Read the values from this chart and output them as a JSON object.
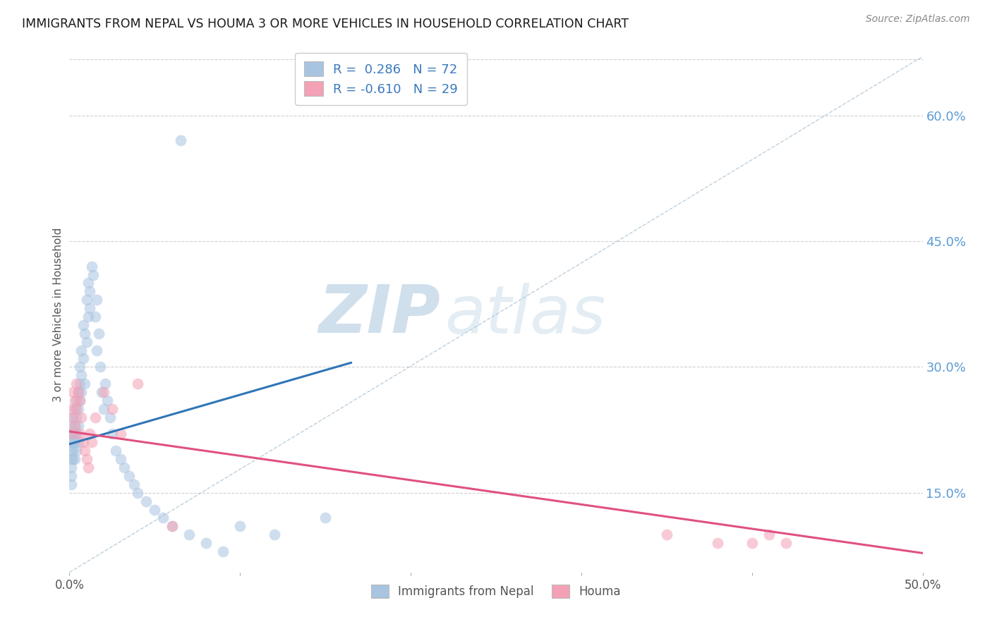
{
  "title": "IMMIGRANTS FROM NEPAL VS HOUMA 3 OR MORE VEHICLES IN HOUSEHOLD CORRELATION CHART",
  "source": "Source: ZipAtlas.com",
  "ylabel": "3 or more Vehicles in Household",
  "ytick_values": [
    0.15,
    0.3,
    0.45,
    0.6
  ],
  "xlim": [
    0.0,
    0.5
  ],
  "ylim": [
    0.055,
    0.67
  ],
  "legend_label_blue": "Immigrants from Nepal",
  "legend_label_pink": "Houma",
  "watermark_zip": "ZIP",
  "watermark_atlas": "atlas",
  "nepal_color": "#a8c4e0",
  "houma_color": "#f4a0b5",
  "nepal_line_color": "#2e75b6",
  "houma_line_color": "#e05080",
  "diag_line_color": "#b0c8d8",
  "nepal_legend_text": "R =  0.286   N = 72",
  "houma_legend_text": "R = -0.610   N = 29",
  "nepal_trend_x": [
    0.0,
    0.165
  ],
  "nepal_trend_y": [
    0.208,
    0.305
  ],
  "houma_trend_x": [
    0.0,
    0.5
  ],
  "houma_trend_y": [
    0.223,
    0.078
  ],
  "nepal_scatter_x": [
    0.001,
    0.001,
    0.001,
    0.001,
    0.001,
    0.001,
    0.001,
    0.001,
    0.002,
    0.002,
    0.002,
    0.002,
    0.002,
    0.003,
    0.003,
    0.003,
    0.003,
    0.003,
    0.004,
    0.004,
    0.004,
    0.004,
    0.005,
    0.005,
    0.005,
    0.005,
    0.006,
    0.006,
    0.006,
    0.007,
    0.007,
    0.007,
    0.008,
    0.008,
    0.009,
    0.009,
    0.01,
    0.01,
    0.011,
    0.011,
    0.012,
    0.012,
    0.013,
    0.014,
    0.015,
    0.016,
    0.016,
    0.017,
    0.018,
    0.019,
    0.02,
    0.021,
    0.022,
    0.024,
    0.025,
    0.027,
    0.03,
    0.032,
    0.035,
    0.038,
    0.04,
    0.045,
    0.05,
    0.055,
    0.06,
    0.065,
    0.07,
    0.08,
    0.09,
    0.1,
    0.12,
    0.15
  ],
  "nepal_scatter_y": [
    0.21,
    0.2,
    0.22,
    0.19,
    0.23,
    0.18,
    0.17,
    0.16,
    0.22,
    0.2,
    0.24,
    0.19,
    0.21,
    0.23,
    0.25,
    0.21,
    0.19,
    0.22,
    0.24,
    0.26,
    0.22,
    0.2,
    0.25,
    0.23,
    0.27,
    0.21,
    0.28,
    0.26,
    0.3,
    0.27,
    0.32,
    0.29,
    0.31,
    0.35,
    0.34,
    0.28,
    0.38,
    0.33,
    0.4,
    0.36,
    0.37,
    0.39,
    0.42,
    0.41,
    0.36,
    0.38,
    0.32,
    0.34,
    0.3,
    0.27,
    0.25,
    0.28,
    0.26,
    0.24,
    0.22,
    0.2,
    0.19,
    0.18,
    0.17,
    0.16,
    0.15,
    0.14,
    0.13,
    0.12,
    0.11,
    0.57,
    0.1,
    0.09,
    0.08,
    0.11,
    0.1,
    0.12
  ],
  "houma_scatter_x": [
    0.001,
    0.001,
    0.002,
    0.002,
    0.003,
    0.003,
    0.004,
    0.004,
    0.005,
    0.006,
    0.006,
    0.007,
    0.008,
    0.009,
    0.01,
    0.011,
    0.012,
    0.013,
    0.015,
    0.02,
    0.025,
    0.03,
    0.04,
    0.06,
    0.35,
    0.38,
    0.4,
    0.41,
    0.42
  ],
  "houma_scatter_y": [
    0.25,
    0.22,
    0.27,
    0.24,
    0.26,
    0.23,
    0.28,
    0.25,
    0.27,
    0.26,
    0.22,
    0.24,
    0.21,
    0.2,
    0.19,
    0.18,
    0.22,
    0.21,
    0.24,
    0.27,
    0.25,
    0.22,
    0.28,
    0.11,
    0.1,
    0.09,
    0.09,
    0.1,
    0.09
  ]
}
